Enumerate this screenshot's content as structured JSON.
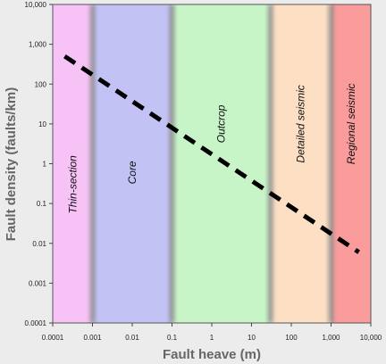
{
  "chart_data": {
    "type": "line",
    "x_scale": "log",
    "y_scale": "log",
    "xlabel": "Fault heave (m)",
    "ylabel": "Fault density (faults/km)",
    "xlim": [
      0.0001,
      10000
    ],
    "ylim": [
      0.0001,
      10000
    ],
    "x_ticks": [
      {
        "value": 0.0001,
        "label": "0.0001"
      },
      {
        "value": 0.001,
        "label": "0.001"
      },
      {
        "value": 0.01,
        "label": "0.01"
      },
      {
        "value": 0.1,
        "label": "0.1"
      },
      {
        "value": 1,
        "label": "1"
      },
      {
        "value": 10,
        "label": "10"
      },
      {
        "value": 100,
        "label": "100"
      },
      {
        "value": 1000,
        "label": "1,000"
      },
      {
        "value": 10000,
        "label": "10,000"
      }
    ],
    "y_ticks": [
      {
        "value": 0.0001,
        "label": "0.0001"
      },
      {
        "value": 0.001,
        "label": "0.001"
      },
      {
        "value": 0.01,
        "label": "0.01"
      },
      {
        "value": 0.1,
        "label": "0.1"
      },
      {
        "value": 1,
        "label": "1"
      },
      {
        "value": 10,
        "label": "10"
      },
      {
        "value": 100,
        "label": "100"
      },
      {
        "value": 1000,
        "label": "1,000"
      },
      {
        "value": 10000,
        "label": "10,000"
      }
    ],
    "bands": [
      {
        "label": "Thin-section",
        "x_range": [
          0.0001,
          0.001
        ],
        "color": "#f7c3f7",
        "label_y": 0.3
      },
      {
        "label": "Core",
        "x_range": [
          0.001,
          0.1
        ],
        "color": "#c2c2f5",
        "label_y": 0.6
      },
      {
        "label": "Outcrop",
        "x_range": [
          0.1,
          30
        ],
        "color": "#c8f5c8",
        "label_y": 10
      },
      {
        "label": "Detailed seismic",
        "x_range": [
          30,
          1000
        ],
        "color": "#fde0c4",
        "label_y": 10
      },
      {
        "label": "Regional seismic",
        "x_range": [
          1000,
          10000
        ],
        "color": "#fb9c9c",
        "label_y": 10
      }
    ],
    "series": [
      {
        "x": [
          0.0002,
          5000
        ],
        "y": [
          500,
          0.006
        ],
        "style": "dashed",
        "color": "#000000"
      }
    ],
    "grid": false
  }
}
